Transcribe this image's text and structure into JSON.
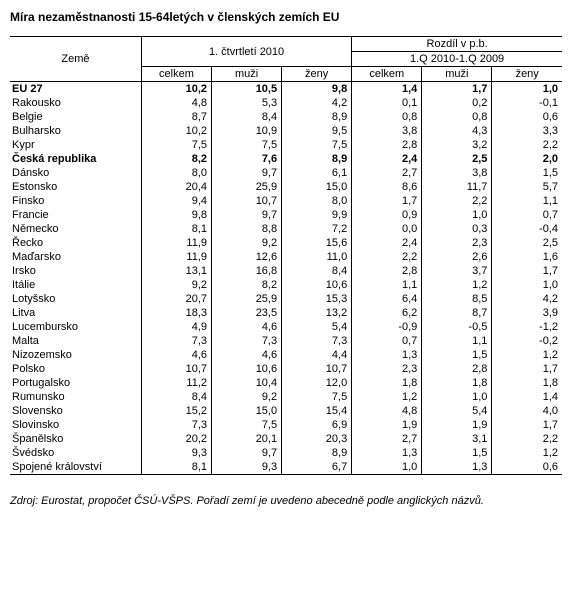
{
  "title": "Míra nezaměstnanosti 15-64letých v členských zemích EU",
  "footnote": "Zdroj: Eurostat, propočet ČSÚ-VŠPS. Pořadí zemí je uvedeno abecedně podle anglických názvů.",
  "headers": {
    "country": "Země",
    "group1": "1. čtvrtletí 2010",
    "group2a": "Rozdíl v p.b.",
    "group2b": "1.Q 2010-1.Q 2009",
    "c1": "celkem",
    "c2": "muži",
    "c3": "ženy",
    "c4": "celkem",
    "c5": "muži",
    "c6": "ženy"
  },
  "rows": [
    {
      "bold": true,
      "name": "EU 27",
      "v": [
        "10,2",
        "10,5",
        "9,8",
        "1,4",
        "1,7",
        "1,0"
      ]
    },
    {
      "name": "Rakousko",
      "v": [
        "4,8",
        "5,3",
        "4,2",
        "0,1",
        "0,2",
        "-0,1"
      ]
    },
    {
      "name": "Belgie",
      "v": [
        "8,7",
        "8,4",
        "8,9",
        "0,8",
        "0,8",
        "0,6"
      ]
    },
    {
      "name": "Bulharsko",
      "v": [
        "10,2",
        "10,9",
        "9,5",
        "3,8",
        "4,3",
        "3,3"
      ]
    },
    {
      "name": "Kypr",
      "v": [
        "7,5",
        "7,5",
        "7,5",
        "2,8",
        "3,2",
        "2,2"
      ]
    },
    {
      "bold": true,
      "name": "Česká republika",
      "v": [
        "8,2",
        "7,6",
        "8,9",
        "2,4",
        "2,5",
        "2,0"
      ]
    },
    {
      "name": "Dánsko",
      "v": [
        "8,0",
        "9,7",
        "6,1",
        "2,7",
        "3,8",
        "1,5"
      ]
    },
    {
      "name": "Estonsko",
      "v": [
        "20,4",
        "25,9",
        "15,0",
        "8,6",
        "11,7",
        "5,7"
      ]
    },
    {
      "name": "Finsko",
      "v": [
        "9,4",
        "10,7",
        "8,0",
        "1,7",
        "2,2",
        "1,1"
      ]
    },
    {
      "name": "Francie",
      "v": [
        "9,8",
        "9,7",
        "9,9",
        "0,9",
        "1,0",
        "0,7"
      ]
    },
    {
      "name": "Německo",
      "v": [
        "8,1",
        "8,8",
        "7,2",
        "0,0",
        "0,3",
        "-0,4"
      ]
    },
    {
      "name": "Řecko",
      "v": [
        "11,9",
        "9,2",
        "15,6",
        "2,4",
        "2,3",
        "2,5"
      ]
    },
    {
      "name": "Maďarsko",
      "v": [
        "11,9",
        "12,6",
        "11,0",
        "2,2",
        "2,6",
        "1,6"
      ]
    },
    {
      "name": "Irsko",
      "v": [
        "13,1",
        "16,8",
        "8,4",
        "2,8",
        "3,7",
        "1,7"
      ]
    },
    {
      "name": "Itálie",
      "v": [
        "9,2",
        "8,2",
        "10,6",
        "1,1",
        "1,2",
        "1,0"
      ]
    },
    {
      "name": "Lotyšsko",
      "v": [
        "20,7",
        "25,9",
        "15,3",
        "6,4",
        "8,5",
        "4,2"
      ]
    },
    {
      "name": "Litva",
      "v": [
        "18,3",
        "23,5",
        "13,2",
        "6,2",
        "8,7",
        "3,9"
      ]
    },
    {
      "name": "Lucembursko",
      "v": [
        "4,9",
        "4,6",
        "5,4",
        "-0,9",
        "-0,5",
        "-1,2"
      ]
    },
    {
      "name": "Malta",
      "v": [
        "7,3",
        "7,3",
        "7,3",
        "0,7",
        "1,1",
        "-0,2"
      ]
    },
    {
      "name": "Nizozemsko",
      "v": [
        "4,6",
        "4,6",
        "4,4",
        "1,3",
        "1,5",
        "1,2"
      ]
    },
    {
      "name": "Polsko",
      "v": [
        "10,7",
        "10,6",
        "10,7",
        "2,3",
        "2,8",
        "1,7"
      ]
    },
    {
      "name": "Portugalsko",
      "v": [
        "11,2",
        "10,4",
        "12,0",
        "1,8",
        "1,8",
        "1,8"
      ]
    },
    {
      "name": "Rumunsko",
      "v": [
        "8,4",
        "9,2",
        "7,5",
        "1,2",
        "1,0",
        "1,4"
      ]
    },
    {
      "name": "Slovensko",
      "v": [
        "15,2",
        "15,0",
        "15,4",
        "4,8",
        "5,4",
        "4,0"
      ]
    },
    {
      "name": "Slovinsko",
      "v": [
        "7,3",
        "7,5",
        "6,9",
        "1,9",
        "1,9",
        "1,7"
      ]
    },
    {
      "name": "Španělsko",
      "v": [
        "20,2",
        "20,1",
        "20,3",
        "2,7",
        "3,1",
        "2,2"
      ]
    },
    {
      "name": "Švédsko",
      "v": [
        "9,3",
        "9,7",
        "8,9",
        "1,3",
        "1,5",
        "1,2"
      ]
    },
    {
      "name": "Spojené království",
      "v": [
        "8,1",
        "9,3",
        "6,7",
        "1,0",
        "1,3",
        "0,6"
      ]
    }
  ],
  "colwidths": [
    "120",
    "64",
    "64",
    "64",
    "64",
    "64",
    "64"
  ]
}
